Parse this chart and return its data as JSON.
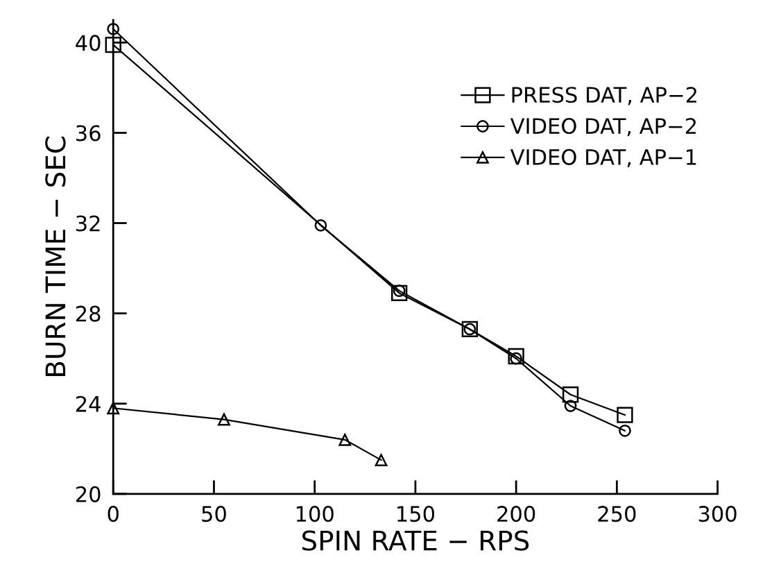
{
  "chart_data": {
    "type": "line",
    "xlabel": "SPIN RATE − RPS",
    "ylabel": "BURN TIME − SEC",
    "xlim": [
      0,
      300
    ],
    "xticks": [
      0,
      50,
      100,
      150,
      200,
      250,
      300
    ],
    "ylim": [
      20,
      41
    ],
    "yticks": [
      20,
      24,
      28,
      32,
      36,
      40
    ],
    "grid": false,
    "legend": "top right",
    "series": [
      {
        "name": "PRESS DAT, AP−2",
        "color": "#000000",
        "marker": "square",
        "x": [
          0,
          142,
          177,
          200,
          227,
          254
        ],
        "values": [
          39.9,
          28.9,
          27.3,
          26.1,
          24.4,
          23.5
        ]
      },
      {
        "name": "VIDEO DAT, AP−2",
        "color": "#000000",
        "marker": "circle",
        "x": [
          0,
          103,
          142,
          177,
          200,
          227,
          254
        ],
        "values": [
          40.6,
          31.9,
          29.0,
          27.3,
          26.0,
          23.9,
          22.8
        ]
      },
      {
        "name": "VIDEO DAT, AP−1",
        "color": "#000000",
        "marker": "triangle",
        "x": [
          0,
          55,
          115,
          133
        ],
        "values": [
          23.8,
          23.3,
          22.4,
          21.5
        ]
      }
    ]
  }
}
